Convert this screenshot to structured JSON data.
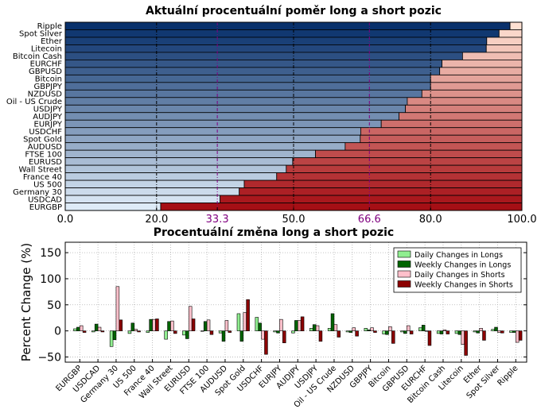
{
  "chart_data": [
    {
      "type": "bar",
      "orientation": "horizontal",
      "stacked": true,
      "title": "Aktuální procentuální poměr long a short pozic",
      "categories": [
        "Ripple",
        "Spot Silver",
        "Ether",
        "Litecoin",
        "Bitcoin Cash",
        "EURCHF",
        "GBPUSD",
        "Bitcoin",
        "GBPJPY",
        "NZDUSD",
        "Oil - US Crude",
        "USDJPY",
        "AUDJPY",
        "EURJPY",
        "USDCHF",
        "Spot Gold",
        "AUDUSD",
        "FTSE 100",
        "EURUSD",
        "Wall Street",
        "France 40",
        "US 500",
        "Germany 30",
        "USDCAD",
        "EURGBP"
      ],
      "long_percent": [
        97.4,
        95.0,
        92.3,
        92.2,
        87.0,
        82.5,
        82.0,
        80.0,
        80.0,
        78.1,
        74.9,
        74.5,
        73.1,
        69.2,
        64.7,
        64.6,
        61.3,
        54.8,
        49.8,
        48.4,
        46.3,
        39.2,
        38.1,
        33.9,
        20.9
      ],
      "xlim": [
        0,
        100
      ],
      "xticks": [
        "0.0",
        "20.0",
        "33.3",
        "50.0",
        "66.6",
        "80.0",
        "100.0"
      ],
      "highlight_ticks": [
        "33.3",
        "66.6"
      ],
      "highlight_color": "#800080",
      "long_palette": [
        "#08306b",
        "#deebf7"
      ],
      "short_palette": [
        "#fee0d2",
        "#a50f15"
      ]
    },
    {
      "type": "bar",
      "title": "Procentuální změna long a short pozic",
      "ylabel": "Percent Change (%)",
      "ylim": [
        -60,
        170
      ],
      "yticks": [
        "−50",
        "0",
        "50",
        "100",
        "150"
      ],
      "categories": [
        "EURGBP",
        "USDCAD",
        "Germany 30",
        "US 500",
        "France 40",
        "Wall Street",
        "EURUSD",
        "FTSE 100",
        "AUDUSD",
        "Spot Gold",
        "USDCHF",
        "EURJPY",
        "AUDJPY",
        "USDJPY",
        "Oil - US Crude",
        "NZDUSD",
        "GBPJPY",
        "Bitcoin",
        "GBPUSD",
        "EURCHF",
        "Bitcoin Cash",
        "Litecoin",
        "Ether",
        "Spot Silver",
        "Ripple"
      ],
      "series": [
        {
          "name": "Daily Changes in Longs",
          "color": "#90ee90",
          "values": [
            4,
            -2,
            -30,
            -5,
            -3,
            -16,
            -8,
            0,
            -4,
            33,
            26,
            -2,
            -4,
            5,
            5,
            -2,
            5,
            -6,
            -2,
            6,
            -5,
            -5,
            -2,
            3,
            -3
          ]
        },
        {
          "name": "Weekly Changes in Longs",
          "color": "#006400",
          "values": [
            7,
            13,
            -17,
            15,
            22,
            18,
            -15,
            18,
            -20,
            -20,
            15,
            -4,
            20,
            12,
            33,
            -3,
            2,
            -7,
            -5,
            11,
            -6,
            -7,
            -4,
            7,
            -3
          ]
        },
        {
          "name": "Daily Changes in Shorts",
          "color": "#ffc0cb",
          "values": [
            10,
            7,
            85,
            3,
            22,
            19,
            47,
            21,
            20,
            35,
            -16,
            22,
            20,
            10,
            12,
            6,
            6,
            8,
            10,
            0,
            2,
            -26,
            5,
            -3,
            -22
          ]
        },
        {
          "name": "Weekly Changes in Shorts",
          "color": "#8b0000",
          "values": [
            -3,
            -2,
            21,
            -2,
            23,
            -5,
            23,
            -7,
            -3,
            60,
            -45,
            -23,
            27,
            -20,
            -12,
            -10,
            -3,
            -24,
            -6,
            -28,
            -6,
            -47,
            -18,
            -4,
            -18
          ]
        }
      ]
    }
  ]
}
